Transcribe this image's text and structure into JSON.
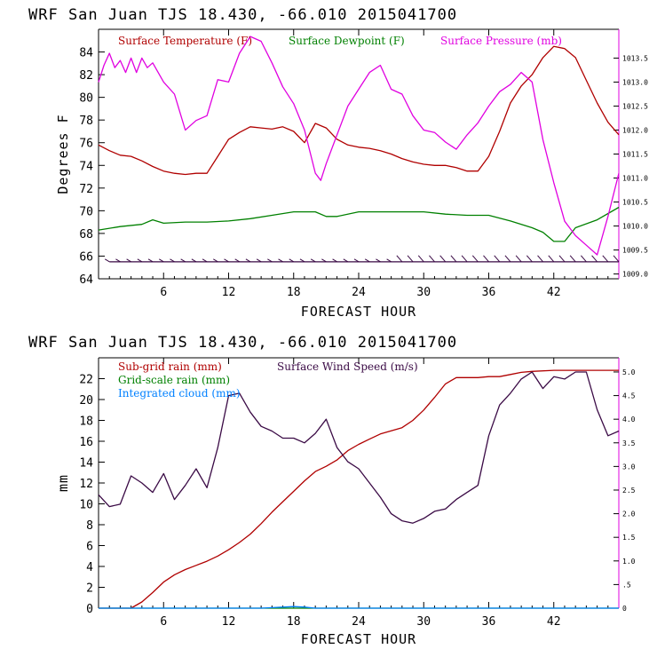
{
  "chart_data": [
    {
      "type": "line",
      "title": "WRF   San Juan TJS  18.430, -66.010  2015041700",
      "xlabel": "FORECAST HOUR",
      "ylabel": "Degrees F",
      "xlim": [
        0,
        48
      ],
      "ylim": [
        64,
        86
      ],
      "y2lim": [
        1008.9,
        1014.1
      ],
      "xticks": [
        "6",
        "12",
        "18",
        "24",
        "30",
        "36",
        "42"
      ],
      "xtick_values": [
        6,
        12,
        18,
        24,
        30,
        36,
        42
      ],
      "yticks": [
        "64",
        "66",
        "68",
        "70",
        "72",
        "74",
        "76",
        "78",
        "80",
        "82",
        "84"
      ],
      "ytick_values": [
        64,
        66,
        68,
        70,
        72,
        74,
        76,
        78,
        80,
        82,
        84
      ],
      "y2ticks": [
        "1009.0",
        "1009.5",
        "1010.0",
        "1010.5",
        "1011.0",
        "1011.5",
        "1012.0",
        "1012.5",
        "1013.0",
        "1013.5"
      ],
      "y2tick_values": [
        1009.0,
        1009.5,
        1010.0,
        1010.5,
        1011.0,
        1011.5,
        1012.0,
        1012.5,
        1013.0,
        1013.5
      ],
      "legend_placement": "top",
      "series": [
        {
          "name": "Surface Temperature (F)",
          "color": "#b00000",
          "axis": "left",
          "x": [
            0,
            1,
            2,
            3,
            4,
            5,
            6,
            7,
            8,
            9,
            10,
            11,
            12,
            13,
            14,
            15,
            16,
            17,
            18,
            19,
            20,
            21,
            22,
            23,
            24,
            25,
            26,
            27,
            28,
            29,
            30,
            31,
            32,
            33,
            34,
            35,
            36,
            37,
            38,
            39,
            40,
            41,
            42,
            43,
            44,
            45,
            46,
            47,
            48
          ],
          "values": [
            75.8,
            75.3,
            74.9,
            74.8,
            74.4,
            73.9,
            73.5,
            73.3,
            73.2,
            73.3,
            73.3,
            74.8,
            76.3,
            76.9,
            77.4,
            77.3,
            77.2,
            77.4,
            77.0,
            76.0,
            77.7,
            77.3,
            76.3,
            75.8,
            75.6,
            75.5,
            75.3,
            75.0,
            74.6,
            74.3,
            74.1,
            74.0,
            74.0,
            73.8,
            73.5,
            73.5,
            74.8,
            77.0,
            79.5,
            81.0,
            82.0,
            83.5,
            84.5,
            84.3,
            83.5,
            81.5,
            79.5,
            77.8,
            76.7
          ]
        },
        {
          "name": "Surface Dewpoint (F)",
          "color": "#008000",
          "axis": "left",
          "x": [
            0,
            2,
            4,
            5,
            6,
            8,
            10,
            12,
            14,
            16,
            18,
            20,
            21,
            22,
            24,
            26,
            28,
            30,
            32,
            34,
            36,
            38,
            40,
            41,
            42,
            43,
            44,
            46,
            48
          ],
          "values": [
            68.3,
            68.6,
            68.8,
            69.2,
            68.9,
            69.0,
            69.0,
            69.1,
            69.3,
            69.6,
            69.9,
            69.9,
            69.5,
            69.5,
            69.9,
            69.9,
            69.9,
            69.9,
            69.7,
            69.6,
            69.6,
            69.1,
            68.5,
            68.1,
            67.3,
            67.3,
            68.5,
            69.2,
            70.3
          ]
        },
        {
          "name": "Surface Pressure (mb)",
          "color": "#e000e0",
          "axis": "right",
          "x": [
            0,
            0.5,
            1,
            1.5,
            2,
            2.5,
            3,
            3.5,
            4,
            4.5,
            5,
            6,
            7,
            8,
            9,
            10,
            11,
            12,
            13,
            14,
            15,
            16,
            17,
            18,
            19,
            20,
            20.5,
            21,
            22,
            23,
            24,
            25,
            26,
            26.5,
            27,
            28,
            29,
            30,
            31,
            32,
            33,
            34,
            35,
            36,
            37,
            38,
            39,
            40,
            41,
            42,
            43,
            44,
            45,
            46,
            47,
            48
          ],
          "values": [
            1013.0,
            1013.35,
            1013.6,
            1013.3,
            1013.45,
            1013.2,
            1013.5,
            1013.2,
            1013.5,
            1013.3,
            1013.4,
            1013.0,
            1012.75,
            1012.0,
            1012.2,
            1012.3,
            1013.05,
            1013.0,
            1013.6,
            1013.95,
            1013.85,
            1013.4,
            1012.9,
            1012.55,
            1012.0,
            1011.1,
            1010.95,
            1011.3,
            1011.9,
            1012.5,
            1012.85,
            1013.2,
            1013.35,
            1013.1,
            1012.85,
            1012.75,
            1012.3,
            1012.0,
            1011.95,
            1011.75,
            1011.6,
            1011.9,
            1012.15,
            1012.5,
            1012.8,
            1012.95,
            1013.2,
            1013.0,
            1011.8,
            1010.9,
            1010.1,
            1009.8,
            1009.6,
            1009.4,
            1010.2,
            1011.1
          ]
        }
      ],
      "wind_barb_row": {
        "y": 65.5,
        "x": [
          1,
          2,
          3,
          4,
          5,
          6,
          7,
          8,
          9,
          10,
          11,
          12,
          13,
          14,
          15,
          16,
          17,
          18,
          19,
          20,
          21,
          22,
          23,
          24,
          25,
          26,
          27,
          28,
          29,
          30,
          31,
          32,
          33,
          34,
          35,
          36,
          37,
          38,
          39,
          40,
          41,
          42,
          43,
          44,
          45,
          46,
          47,
          48
        ],
        "color": "#3a0a45"
      }
    },
    {
      "type": "line",
      "title": "WRF   San Juan TJS  18.430, -66.010  2015041700",
      "xlabel": "FORECAST HOUR",
      "ylabel": "mm",
      "xlim": [
        0,
        48
      ],
      "ylim": [
        0,
        24
      ],
      "y2lim": [
        0,
        5.3
      ],
      "xticks": [
        "6",
        "12",
        "18",
        "24",
        "30",
        "36",
        "42"
      ],
      "xtick_values": [
        6,
        12,
        18,
        24,
        30,
        36,
        42
      ],
      "yticks": [
        "0",
        "2",
        "4",
        "6",
        "8",
        "10",
        "12",
        "14",
        "16",
        "18",
        "20",
        "22"
      ],
      "ytick_values": [
        0,
        2,
        4,
        6,
        8,
        10,
        12,
        14,
        16,
        18,
        20,
        22
      ],
      "y2ticks": [
        "0",
        ".5",
        "1.0",
        "1.5",
        "2.0",
        "2.5",
        "3.0",
        "3.5",
        "4.0",
        "4.5",
        "5.0"
      ],
      "y2tick_values": [
        0,
        0.5,
        1.0,
        1.5,
        2.0,
        2.5,
        3.0,
        3.5,
        4.0,
        4.5,
        5.0
      ],
      "legend_placement": "top-left",
      "series": [
        {
          "name": "Sub-grid rain (mm)",
          "color": "#b00000",
          "axis": "left",
          "x": [
            0,
            3,
            4,
            5,
            6,
            7,
            8,
            9,
            10,
            11,
            12,
            13,
            14,
            15,
            16,
            17,
            18,
            19,
            20,
            21,
            22,
            23,
            24,
            25,
            26,
            27,
            28,
            29,
            30,
            31,
            32,
            33,
            34,
            35,
            36,
            37,
            38,
            39,
            40,
            42,
            44,
            46,
            48
          ],
          "values": [
            0,
            0,
            0.6,
            1.5,
            2.5,
            3.2,
            3.7,
            4.1,
            4.5,
            5.0,
            5.6,
            6.3,
            7.1,
            8.1,
            9.2,
            10.2,
            11.2,
            12.2,
            13.1,
            13.6,
            14.2,
            15.1,
            15.7,
            16.2,
            16.7,
            17.0,
            17.3,
            18.0,
            19.0,
            20.2,
            21.5,
            22.1,
            22.1,
            22.1,
            22.2,
            22.2,
            22.4,
            22.6,
            22.7,
            22.8,
            22.8,
            22.8,
            22.8
          ]
        },
        {
          "name": "Surface Wind Speed (m/s)",
          "color": "#3a0a45",
          "axis": "right",
          "x": [
            0,
            1,
            2,
            3,
            4,
            5,
            6,
            7,
            8,
            9,
            10,
            11,
            12,
            13,
            14,
            15,
            16,
            17,
            18,
            19,
            20,
            21,
            22,
            23,
            24,
            25,
            26,
            27,
            28,
            29,
            30,
            31,
            32,
            33,
            34,
            35,
            36,
            37,
            38,
            39,
            40,
            41,
            42,
            43,
            44,
            45,
            46,
            47,
            48
          ],
          "values": [
            2.4,
            2.15,
            2.2,
            2.8,
            2.65,
            2.45,
            2.85,
            2.3,
            2.6,
            2.95,
            2.55,
            3.4,
            4.5,
            4.55,
            4.15,
            3.85,
            3.75,
            3.6,
            3.6,
            3.5,
            3.7,
            4.0,
            3.4,
            3.1,
            2.95,
            2.65,
            2.35,
            2.0,
            1.85,
            1.8,
            1.9,
            2.05,
            2.1,
            2.3,
            2.45,
            2.6,
            3.65,
            4.3,
            4.55,
            4.85,
            5.0,
            4.65,
            4.9,
            4.85,
            5.0,
            5.0,
            4.2,
            3.65,
            3.75
          ]
        },
        {
          "name": "Grid-scale rain (mm)",
          "color": "#008000",
          "axis": "left",
          "x": [
            0,
            48
          ],
          "values": [
            0,
            0
          ]
        },
        {
          "name": "Integrated cloud (mm)",
          "color": "#0080ff",
          "axis": "left",
          "x": [
            0,
            15,
            16,
            17,
            18,
            19,
            20,
            48
          ],
          "values": [
            0,
            0,
            0.05,
            0.1,
            0.15,
            0.1,
            0,
            0
          ]
        }
      ]
    }
  ]
}
